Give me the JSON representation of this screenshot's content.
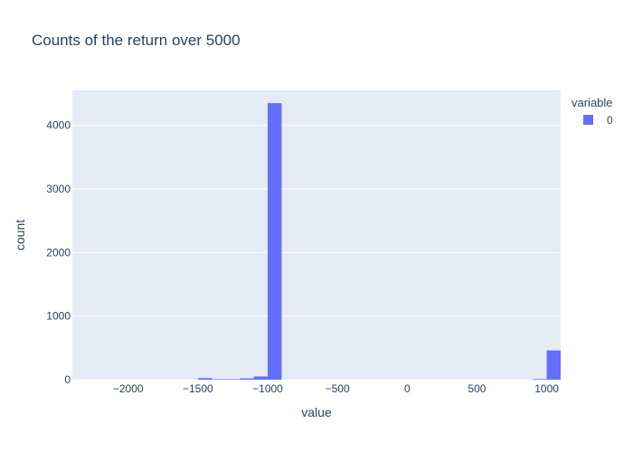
{
  "chart_data": {
    "type": "bar",
    "title": "Counts of the return over 5000",
    "xlabel": "value",
    "ylabel": "count",
    "xlim": [
      -2400,
      1100
    ],
    "ylim": [
      0,
      4550
    ],
    "xticks": [
      -2000,
      -1500,
      -1000,
      -500,
      0,
      500,
      1000
    ],
    "xtick_labels": [
      "−2000",
      "−1500",
      "−1000",
      "−500",
      "0",
      "500",
      "1000"
    ],
    "yticks": [
      0,
      1000,
      2000,
      3000,
      4000
    ],
    "ytick_labels": [
      "0",
      "1000",
      "2000",
      "3000",
      "4000"
    ],
    "bin_width": 100,
    "bins": [
      {
        "x0": -1500,
        "x1": -1400,
        "count": 25
      },
      {
        "x0": -1400,
        "x1": -1300,
        "count": 8
      },
      {
        "x0": -1300,
        "x1": -1200,
        "count": 8
      },
      {
        "x0": -1200,
        "x1": -1100,
        "count": 20
      },
      {
        "x0": -1100,
        "x1": -1000,
        "count": 50
      },
      {
        "x0": -1000,
        "x1": -900,
        "count": 4350
      },
      {
        "x0": 900,
        "x1": 1000,
        "count": 10
      },
      {
        "x0": 1000,
        "x1": 1100,
        "count": 460
      }
    ],
    "legend": {
      "title": "variable",
      "position": "top-right",
      "entries": [
        {
          "name": "0",
          "color": "#636efa"
        }
      ]
    },
    "grid": true,
    "colors": {
      "bar": "#636efa",
      "plot_bg": "#e5ecf6",
      "grid": "#ffffff",
      "text": "#2a3f5f"
    }
  }
}
